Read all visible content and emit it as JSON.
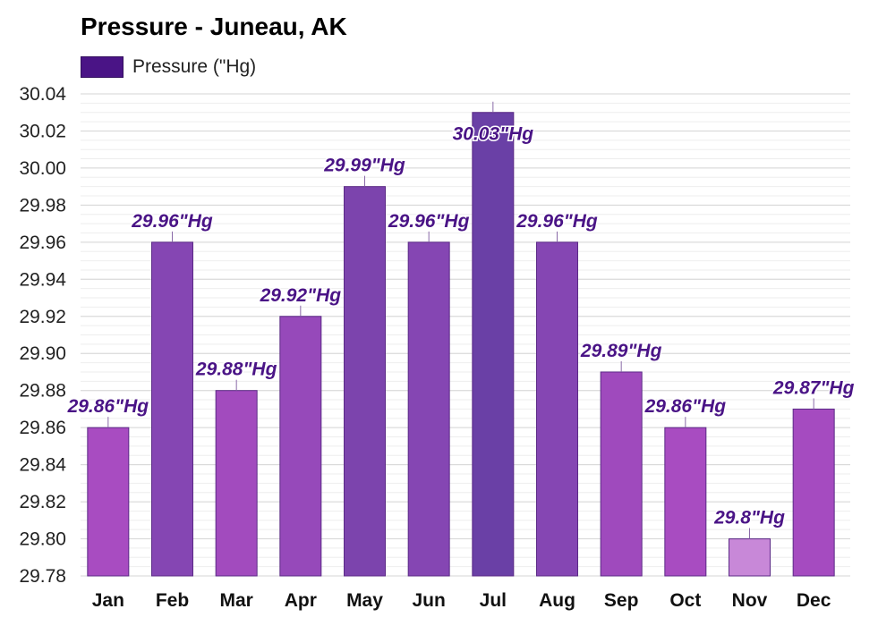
{
  "chart_data": {
    "type": "bar",
    "title": "Pressure - Juneau, AK",
    "legend": {
      "position": "top-left",
      "entries": [
        {
          "label": "Pressure (\"Hg)",
          "color": "#4a1486"
        }
      ]
    },
    "categories": [
      "Jan",
      "Feb",
      "Mar",
      "Apr",
      "May",
      "Jun",
      "Jul",
      "Aug",
      "Sep",
      "Oct",
      "Nov",
      "Dec"
    ],
    "series": [
      {
        "name": "Pressure (\"Hg)",
        "values": [
          29.86,
          29.96,
          29.88,
          29.92,
          29.99,
          29.96,
          30.03,
          29.96,
          29.89,
          29.86,
          29.8,
          29.87
        ],
        "labels": [
          "29.86\"Hg",
          "29.96\"Hg",
          "29.88\"Hg",
          "29.92\"Hg",
          "29.99\"Hg",
          "29.96\"Hg",
          "30.03\"Hg",
          "29.96\"Hg",
          "29.89\"Hg",
          "29.86\"Hg",
          "29.8\"Hg",
          "29.87\"Hg"
        ],
        "colors": [
          "#a84cc1",
          "#8546b3",
          "#a24bbe",
          "#9649ba",
          "#7c44ad",
          "#8546b3",
          "#6a40a6",
          "#8546b3",
          "#9f4abd",
          "#a84cc1",
          "#c888d8",
          "#a54bc0"
        ]
      }
    ],
    "ylim": [
      29.78,
      30.04
    ],
    "yticks": [
      "29.78",
      "29.80",
      "29.82",
      "29.84",
      "29.86",
      "29.88",
      "29.90",
      "29.92",
      "29.94",
      "29.96",
      "29.98",
      "30.00",
      "30.02",
      "30.04"
    ],
    "grid": true,
    "xlabel": "",
    "ylabel": ""
  }
}
